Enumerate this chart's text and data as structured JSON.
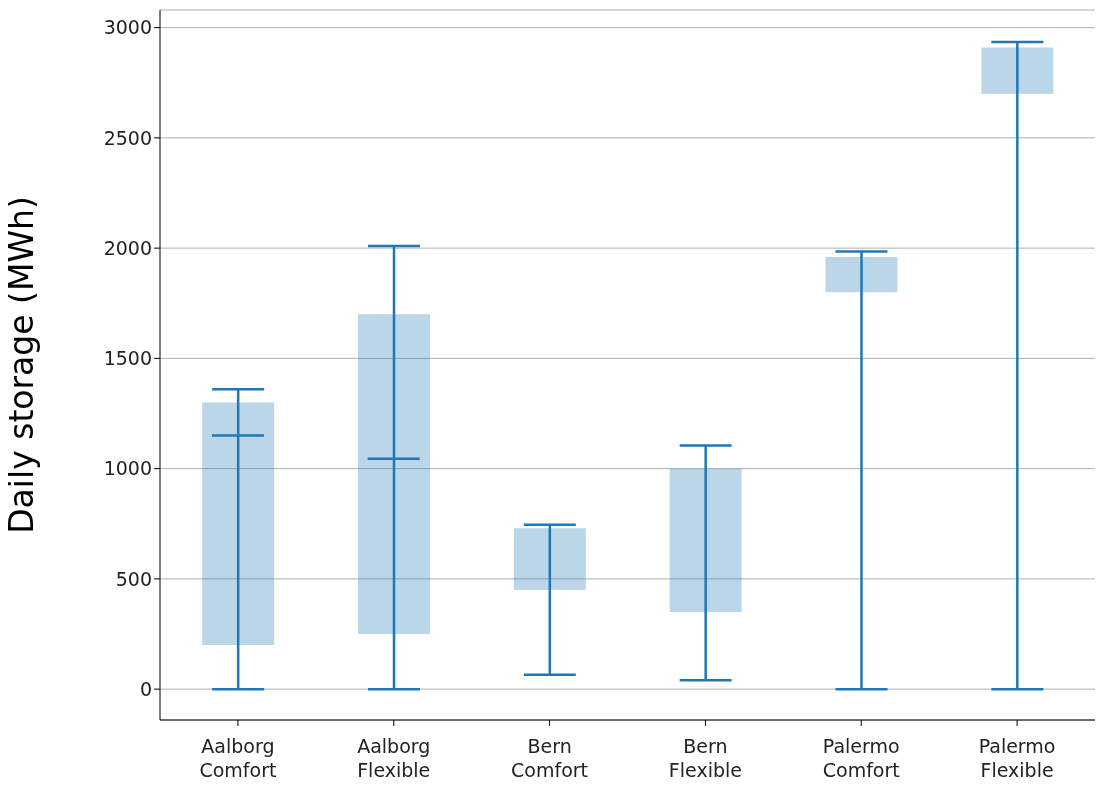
{
  "chart_data": {
    "type": "box",
    "ylabel": "Daily storage (MWh)",
    "categories": [
      "Aalborg Comfort",
      "Aalborg Flexible",
      "Bern Comfort",
      "Bern Flexible",
      "Palermo Comfort",
      "Palermo Flexible"
    ],
    "color": "#1f77b4",
    "boxes": [
      {
        "low": 0,
        "q1": 200,
        "median": 1150,
        "q3": 1300,
        "high": 1360
      },
      {
        "low": 0,
        "q1": 250,
        "median": 1045,
        "q3": 1700,
        "high": 2010
      },
      {
        "low": 65,
        "q1": 450,
        "q3": 730,
        "high": 745
      },
      {
        "low": 40,
        "q1": 350,
        "q3": 1000,
        "high": 1105
      },
      {
        "low": 0,
        "q1": 1800,
        "q3": 1960,
        "high": 1985
      },
      {
        "low": 0,
        "q1": 2700,
        "q3": 2910,
        "high": 2935
      }
    ],
    "ylim": [
      -140,
      3080
    ],
    "yticks": [
      0,
      500,
      1000,
      1500,
      2000,
      2500,
      3000
    ],
    "grid": "y"
  }
}
